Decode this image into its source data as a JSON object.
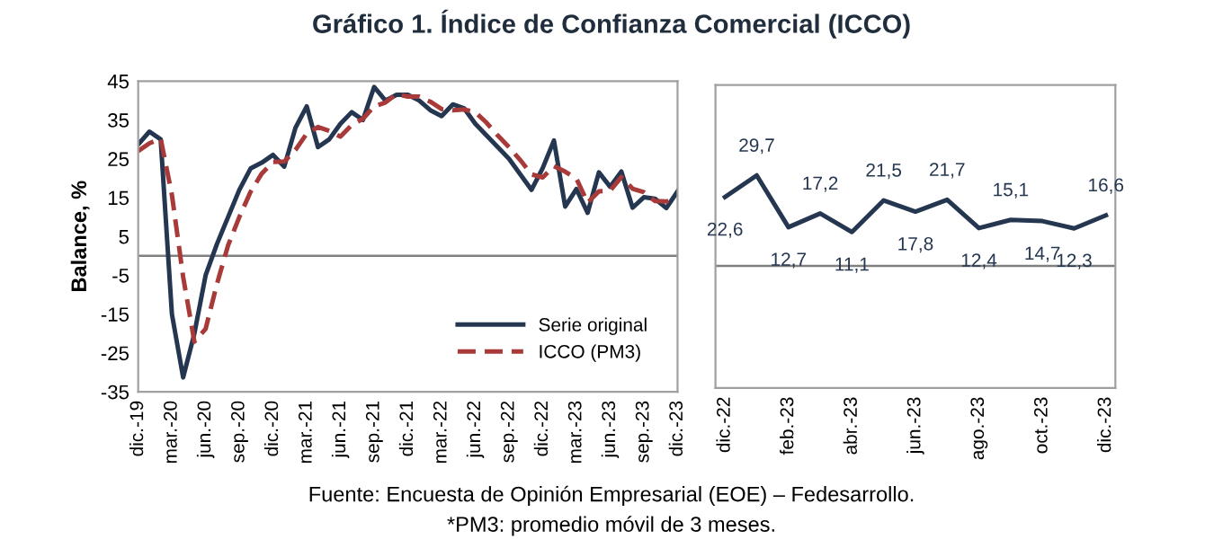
{
  "chart_data": [
    {
      "type": "line",
      "title": "Gráfico 1. Índice de Confianza Comercial (ICCO)",
      "ylabel": "Balance, %",
      "categories": [
        "dic.-19",
        null,
        null,
        "mar.-20",
        null,
        null,
        "jun.-20",
        null,
        null,
        "sep.-20",
        null,
        null,
        "dic.-20",
        null,
        null,
        "mar.-21",
        null,
        null,
        "jun.-21",
        null,
        null,
        "sep.-21",
        null,
        null,
        "dic.-21",
        null,
        null,
        "mar.-22",
        null,
        null,
        "jun.-22",
        null,
        null,
        "sep.-22",
        null,
        null,
        "dic.-22",
        null,
        null,
        "mar.-23",
        null,
        null,
        "jun.-23",
        null,
        null,
        "sep.-23",
        null,
        null,
        "dic.-23"
      ],
      "series": [
        {
          "name": "Serie original",
          "color": "#253650",
          "line_style": "solid",
          "values": [
            28.7,
            32,
            30,
            -15,
            -31.3,
            -20,
            -5,
            3,
            10,
            17,
            22.5,
            24,
            26,
            23,
            33,
            38.5,
            28,
            30,
            34,
            37,
            35,
            43.5,
            40,
            41.5,
            41.5,
            40,
            37.5,
            36,
            39,
            38,
            34,
            31,
            28,
            25,
            21,
            17,
            22.6,
            29.7,
            12.7,
            17.2,
            11.1,
            21.5,
            17.8,
            21.7,
            12.4,
            15.1,
            14.7,
            12.3,
            16.6
          ]
        },
        {
          "name": "ICCO (PM3)",
          "color": "#a83a3a",
          "line_style": "dashed",
          "values": [
            27,
            29,
            30.2,
            15.7,
            -5.4,
            -22.1,
            -18.8,
            -7.3,
            2.7,
            10,
            16.5,
            21.2,
            24.2,
            24.3,
            27.3,
            31.5,
            33.2,
            32.2,
            30.7,
            33.7,
            35.3,
            38.5,
            39.5,
            41.7,
            41,
            41,
            39.7,
            37.8,
            37.5,
            37.7,
            37,
            34.3,
            31,
            28,
            24.7,
            21,
            20.2,
            23.1,
            21.7,
            19.9,
            13.7,
            16.6,
            16.8,
            20.3,
            17.3,
            16.4,
            14.1,
            14,
            14.5
          ]
        }
      ],
      "ylim": [
        -35,
        45
      ],
      "yticks": [
        -35,
        -25,
        -15,
        -5,
        5,
        15,
        25,
        35,
        45
      ],
      "grid": false,
      "legend": "bottom right",
      "ref_lines": [
        {
          "axis": "y",
          "value": 0,
          "color": "#808080"
        }
      ],
      "annotations": [
        "Fuente: Encuesta de Opinión Empresarial (EOE) – Fedesarrollo.",
        "*PM3: promedio móvil de 3 meses."
      ]
    },
    {
      "type": "line",
      "categories": [
        "dic.-22",
        null,
        "feb.-23",
        null,
        "abr.-23",
        null,
        "jun.-23",
        null,
        "ago.-23",
        null,
        "oct.-23",
        null,
        "dic.-23"
      ],
      "series": [
        {
          "color": "#253650",
          "values": [
            22.6,
            29.7,
            12.7,
            17.2,
            11.1,
            21.5,
            17.8,
            21.7,
            12.4,
            15.1,
            14.7,
            12.3,
            16.6
          ],
          "value_labels": [
            "22,6",
            "29,7",
            "12,7",
            "17,2",
            "11,1",
            "21,5",
            "17,8",
            "21,7",
            "12,4",
            "15,1",
            "14,7",
            "12,3",
            "16,6"
          ]
        }
      ],
      "tick_labels": "x",
      "grid": false
    }
  ]
}
